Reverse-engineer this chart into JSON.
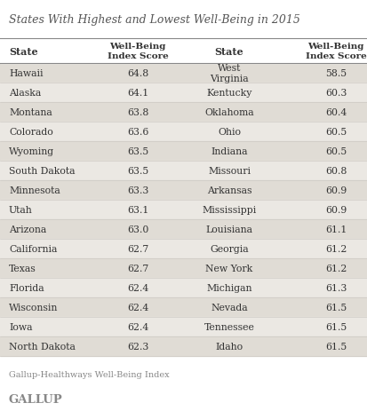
{
  "title": "States With Highest and Lowest Well-Being in 2015",
  "left_states": [
    "Hawaii",
    "Alaska",
    "Montana",
    "Colorado",
    "Wyoming",
    "South Dakota",
    "Minnesota",
    "Utah",
    "Arizona",
    "California",
    "Texas",
    "Florida",
    "Wisconsin",
    "Iowa",
    "North Dakota"
  ],
  "left_scores": [
    "64.8",
    "64.1",
    "63.8",
    "63.6",
    "63.5",
    "63.5",
    "63.3",
    "63.1",
    "63.0",
    "62.7",
    "62.7",
    "62.4",
    "62.4",
    "62.4",
    "62.3"
  ],
  "right_states": [
    "West\nVirginia",
    "Kentucky",
    "Oklahoma",
    "Ohio",
    "Indiana",
    "Missouri",
    "Arkansas",
    "Mississippi",
    "Louisiana",
    "Georgia",
    "New York",
    "Michigan",
    "Nevada",
    "Tennessee",
    "Idaho"
  ],
  "right_scores": [
    "58.5",
    "60.3",
    "60.4",
    "60.5",
    "60.5",
    "60.8",
    "60.9",
    "60.9",
    "61.1",
    "61.2",
    "61.2",
    "61.3",
    "61.5",
    "61.5",
    "61.5"
  ],
  "footer_note": "Gallup-Healthways Well-Being Index",
  "footer_brand": "GALLUP",
  "table_bg": "#ebe8e3",
  "row_even_color": "#e0dcd5",
  "row_odd_color": "#ebe8e3",
  "white_bg": "#ffffff",
  "text_color": "#333333",
  "title_color": "#555555",
  "brand_color": "#888888",
  "line_color": "#c8c4be",
  "header_line_color": "#888888"
}
